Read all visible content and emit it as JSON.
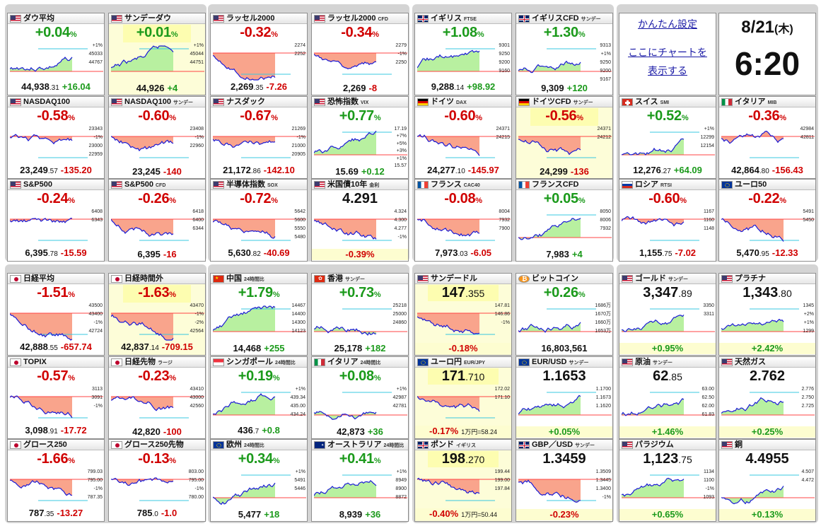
{
  "settings_link": "かんたん設定",
  "chart_link_1": "ここにチャートを",
  "chart_link_2": "表示する",
  "date": "8/21",
  "weekday": "(木)",
  "time": "6:20",
  "tiles": [
    {
      "name": "ダウ平均",
      "sub": "",
      "flag": "us",
      "change": "+0.04",
      "dir": "up",
      "price": "44,938",
      "dec": ".31",
      "diff": "+16.04",
      "labels": [
        "+1%",
        "45033",
        "44767"
      ]
    },
    {
      "name": "サンデーダウ",
      "sub": "",
      "flag": "us",
      "change": "+0.01",
      "dir": "up",
      "price": "44,926",
      "dec": "",
      "diff": "+4",
      "hl": true,
      "labels": [
        "+1%",
        "45044",
        "44751"
      ]
    },
    {
      "name": "ラッセル2000",
      "sub": "",
      "flag": "us",
      "change": "-0.32",
      "dir": "dn",
      "price": "2,269",
      "dec": ".35",
      "diff": "-7.26",
      "labels": [
        "2274",
        "2252"
      ]
    },
    {
      "name": "ラッセル2000",
      "sub": "CFD",
      "flag": "us",
      "change": "-0.34",
      "dir": "dn",
      "price": "2,269",
      "dec": "",
      "diff": "-8",
      "labels": [
        "2279",
        "-1%",
        "2250"
      ]
    },
    {
      "name": "イギリス",
      "sub": "FTSE",
      "flag": "uk",
      "change": "+1.08",
      "dir": "up",
      "price": "9,288",
      "dec": ".14",
      "diff": "+98.92",
      "labels": [
        "9301",
        "9250",
        "9200",
        "9160"
      ]
    },
    {
      "name": "イギリスCFD",
      "sub": "サンデー",
      "flag": "uk",
      "change": "+1.30",
      "dir": "up",
      "price": "9,309",
      "dec": "",
      "diff": "+120",
      "labels": [
        "9313",
        "+1%",
        "9250",
        "9200",
        "9167"
      ]
    },
    {
      "name": "NASDAQ100",
      "sub": "",
      "flag": "us",
      "change": "-0.58",
      "dir": "dn",
      "price": "23,249",
      "dec": ".57",
      "diff": "-135.20",
      "labels": [
        "23343",
        "-1%",
        "23000",
        "22959"
      ]
    },
    {
      "name": "NASDAQ100",
      "sub": "サンデー",
      "flag": "us",
      "change": "-0.60",
      "dir": "dn",
      "price": "23,245",
      "dec": "",
      "diff": "-140",
      "labels": [
        "23408",
        "-1%",
        "22960"
      ]
    },
    {
      "name": "ナスダック",
      "sub": "",
      "flag": "us",
      "change": "-0.67",
      "dir": "dn",
      "price": "21,172",
      "dec": ".86",
      "diff": "-142.10",
      "labels": [
        "21269",
        "-1%",
        "21000",
        "20905"
      ]
    },
    {
      "name": "恐怖指数",
      "sub": "VIX",
      "flag": "us",
      "change": "+0.77",
      "dir": "up",
      "price": "15.69",
      "dec": "",
      "diff": "+0.12",
      "labels": [
        "17.19",
        "+7%",
        "+5%",
        "+3%",
        "+1%",
        "15.57"
      ]
    },
    {
      "name": "ドイツ",
      "sub": "DAX",
      "flag": "de",
      "change": "-0.60",
      "dir": "dn",
      "price": "24,277",
      "dec": ".10",
      "diff": "-145.97",
      "labels": [
        "24371",
        "24215"
      ]
    },
    {
      "name": "ドイツCFD",
      "sub": "サンデー",
      "flag": "de",
      "change": "-0.56",
      "dir": "dn",
      "price": "24,299",
      "dec": "",
      "diff": "-136",
      "hl": true,
      "labels": [
        "24371",
        "24212"
      ]
    },
    {
      "name": "S&P500",
      "sub": "",
      "flag": "us",
      "change": "-0.24",
      "dir": "dn",
      "price": "6,395",
      "dec": ".78",
      "diff": "-15.59",
      "labels": [
        "6408",
        "6343"
      ]
    },
    {
      "name": "S&P500",
      "sub": "CFD",
      "flag": "us",
      "change": "-0.26",
      "dir": "dn",
      "price": "6,395",
      "dec": "",
      "diff": "-16",
      "labels": [
        "6418",
        "6400",
        "6344"
      ]
    },
    {
      "name": "半導体指数",
      "sub": "SOX",
      "flag": "us",
      "change": "-0.72",
      "dir": "dn",
      "price": "5,630",
      "dec": ".82",
      "diff": "-40.69",
      "labels": [
        "5642",
        "5600",
        "5550",
        "5480"
      ]
    },
    {
      "name": "米国債10年",
      "sub": "金利",
      "flag": "us",
      "mode": "price",
      "pricefull": "4.291",
      "pdec": "",
      "footchg": "-0.39%",
      "fdir": "dn",
      "labels": [
        "4.324",
        "4.300",
        "4.277",
        "-1%"
      ]
    },
    {
      "name": "フランス",
      "sub": "CAC40",
      "flag": "fr",
      "change": "-0.08",
      "dir": "dn",
      "price": "7,973",
      "dec": ".03",
      "diff": "-6.05",
      "labels": [
        "8004",
        "7932",
        "7900"
      ]
    },
    {
      "name": "フランスCFD",
      "sub": "",
      "flag": "fr",
      "change": "+0.05",
      "dir": "up",
      "price": "7,983",
      "dec": "",
      "diff": "+4",
      "labels": [
        "8050",
        "8006",
        "7932"
      ]
    },
    {
      "name": "ロシア",
      "sub": "RTSI",
      "flag": "ru",
      "change": "-0.60",
      "dir": "dn",
      "price": "1,155",
      "dec": ".75",
      "diff": "-7.02",
      "labels": [
        "1167",
        "1160",
        "1148"
      ]
    },
    {
      "name": "ユーロ50",
      "sub": "",
      "flag": "eu",
      "change": "-0.22",
      "dir": "dn",
      "price": "5,470",
      "dec": ".95",
      "diff": "-12.33",
      "labels": [
        "5491",
        "5450"
      ]
    },
    {
      "name": "スイス",
      "sub": "SMI",
      "flag": "ch",
      "change": "+0.52",
      "dir": "up",
      "price": "12,276",
      "dec": ".27",
      "diff": "+64.09",
      "labels": [
        "+1%",
        "12299",
        "12154"
      ]
    },
    {
      "name": "イタリア",
      "sub": "MIB",
      "flag": "it",
      "change": "-0.36",
      "dir": "dn",
      "price": "42,864",
      "dec": ".80",
      "diff": "-156.43",
      "labels": [
        "42984",
        "42811"
      ]
    },
    {
      "name": "日経平均",
      "sub": "",
      "flag": "jp",
      "change": "-1.51",
      "dir": "dn",
      "price": "42,888",
      "dec": ".55",
      "diff": "-657.74",
      "labels": [
        "43500",
        "43400",
        "-1%",
        "42724"
      ]
    },
    {
      "name": "日経時間外",
      "sub": "",
      "flag": "jp",
      "change": "-1.63",
      "dir": "dn",
      "price": "42,837",
      "dec": ".14",
      "diff": "-709.15",
      "hl": true,
      "labels": [
        "43470",
        "-1%",
        "-2%",
        "42564"
      ]
    },
    {
      "name": "中国",
      "sub": "24時間比",
      "flag": "cn",
      "change": "+1.79",
      "dir": "up",
      "price": "14,468",
      "dec": "",
      "diff": "+255",
      "labels": [
        "14467",
        "14400",
        "14300",
        "14123"
      ]
    },
    {
      "name": "香港",
      "sub": "サンデー",
      "flag": "hk",
      "change": "+0.73",
      "dir": "up",
      "price": "25,178",
      "dec": "",
      "diff": "+182",
      "labels": [
        "25218",
        "25000",
        "24860"
      ]
    },
    {
      "name": "サンデードル",
      "sub": "",
      "flag": "us",
      "mode": "price",
      "pricefull": "147",
      "pdec": ".355",
      "footchg": "-0.18%",
      "fdir": "dn",
      "hl": true,
      "labels": [
        "147.81",
        "146.86",
        "-1%"
      ]
    },
    {
      "name": "ビットコイン",
      "sub": "",
      "flag": "btc",
      "change": "+0.26",
      "dir": "up",
      "price": "16,803,561",
      "dec": "",
      "diff": "",
      "labels": [
        "1686万",
        "1670万",
        "1660万",
        "1653万"
      ]
    },
    {
      "name": "TOPIX",
      "sub": "",
      "flag": "jp",
      "change": "-0.57",
      "dir": "dn",
      "price": "3,098",
      "dec": ".91",
      "diff": "-17.72",
      "labels": [
        "3113",
        "3091",
        "-1%"
      ]
    },
    {
      "name": "日経先物",
      "sub": "ラージ",
      "flag": "jp",
      "change": "-0.23",
      "dir": "dn",
      "price": "42,820",
      "dec": "",
      "diff": "-100",
      "labels": [
        "43410",
        "43000",
        "42560"
      ]
    },
    {
      "name": "シンガポール",
      "sub": "24時間比",
      "flag": "sg",
      "change": "+0.19",
      "dir": "up",
      "price": "436",
      "dec": ".7",
      "diff": "+0.8",
      "labels": [
        "+1%",
        "439.34",
        "435.00",
        "434.24"
      ]
    },
    {
      "name": "イタリア",
      "sub": "24時間比",
      "flag": "it",
      "change": "+0.08",
      "dir": "up",
      "price": "42,873",
      "dec": "",
      "diff": "+36",
      "labels": [
        "+1%",
        "42987",
        "42781"
      ]
    },
    {
      "name": "ユーロ円",
      "sub": "EUR/JPY",
      "flag": "eu",
      "mode": "price",
      "pricefull": "171",
      "pdec": ".710",
      "footchg": "-0.17%",
      "fdir": "dn",
      "fnote": "1万円=58.24",
      "hl": true,
      "labels": [
        "172.02",
        "171.10"
      ]
    },
    {
      "name": "EUR/USD",
      "sub": "サンデー",
      "flag": "eu",
      "mode": "price",
      "pricefull": "1.1653",
      "pdec": "",
      "footchg": "+0.05%",
      "fdir": "up",
      "labels": [
        "1.1700",
        "1.1673",
        "1.1620"
      ]
    },
    {
      "name": "グロース250",
      "sub": "",
      "flag": "jp",
      "change": "-1.66",
      "dir": "dn",
      "price": "787",
      "dec": ".35",
      "diff": "-13.27",
      "labels": [
        "799.03",
        "795.00",
        "-1%",
        "787.35"
      ]
    },
    {
      "name": "グロース250先物",
      "sub": "",
      "flag": "jp",
      "change": "-0.13",
      "dir": "dn",
      "price": "785",
      "dec": ".0",
      "diff": "-1.0",
      "labels": [
        "803.00",
        "795.00",
        "-1%",
        "780.00"
      ]
    },
    {
      "name": "欧州",
      "sub": "24時間比",
      "flag": "eu",
      "change": "+0.34",
      "dir": "up",
      "price": "5,477",
      "dec": "",
      "diff": "+18",
      "labels": [
        "+1%",
        "5491",
        "5446"
      ]
    },
    {
      "name": "オーストラリア",
      "sub": "24時間比",
      "flag": "au",
      "change": "+0.41",
      "dir": "up",
      "price": "8,939",
      "dec": "",
      "diff": "+36",
      "labels": [
        "+1%",
        "8949",
        "8900",
        "8872"
      ]
    },
    {
      "name": "ポンド",
      "sub": "イギリス",
      "flag": "uk",
      "mode": "price",
      "pricefull": "198",
      "pdec": ".270",
      "footchg": "-0.40%",
      "fdir": "dn",
      "fnote": "1万円=50.44",
      "hl": true,
      "labels": [
        "199.44",
        "199.00",
        "197.84"
      ]
    },
    {
      "name": "GBP／USD",
      "sub": "サンデー",
      "flag": "uk",
      "mode": "price",
      "pricefull": "1.3459",
      "pdec": "",
      "footchg": "-0.23%",
      "fdir": "dn",
      "labels": [
        "1.3509",
        "1.3445",
        "1.3400",
        "-1%"
      ]
    },
    {
      "name": "ゴールド",
      "sub": "サンデー",
      "flag": "us",
      "mode": "price",
      "pricefull": "3,347",
      "pdec": ".89",
      "footchg": "+0.95%",
      "fdir": "up",
      "labels": [
        "3350",
        "3311"
      ]
    },
    {
      "name": "プラチナ",
      "sub": "",
      "flag": "us",
      "mode": "price",
      "pricefull": "1,343",
      "pdec": ".80",
      "footchg": "+2.42%",
      "fdir": "up",
      "labels": [
        "1345",
        "+2%",
        "+1%",
        "1299"
      ]
    },
    {
      "name": "原油",
      "sub": "サンデー",
      "flag": "us",
      "mode": "price",
      "pricefull": "62",
      "pdec": ".85",
      "footchg": "+1.46%",
      "fdir": "up",
      "labels": [
        "63.00",
        "62.50",
        "62.00",
        "61.83"
      ]
    },
    {
      "name": "天然ガス",
      "sub": "",
      "flag": "us",
      "mode": "price",
      "pricefull": "2.762",
      "pdec": "",
      "footchg": "+0.25%",
      "fdir": "up",
      "labels": [
        "2.776",
        "2.750",
        "2.725"
      ]
    },
    {
      "name": "パラジウム",
      "sub": "",
      "flag": "us",
      "mode": "price",
      "pricefull": "1,123",
      "pdec": ".75",
      "footchg": "+0.65%",
      "fdir": "up",
      "labels": [
        "1134",
        "1100",
        "-1%",
        "1093"
      ]
    },
    {
      "name": "銅",
      "sub": "",
      "flag": "us",
      "mode": "price",
      "pricefull": "4.4955",
      "pdec": "",
      "footchg": "+0.13%",
      "fdir": "up",
      "labels": [
        "4.507",
        "4.472"
      ]
    }
  ]
}
